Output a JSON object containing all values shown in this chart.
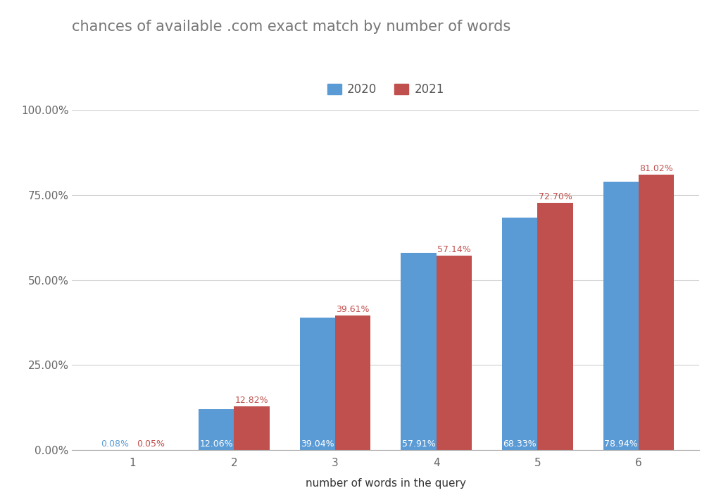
{
  "title": "chances of available .com exact match by number of words",
  "xlabel": "number of words in the query",
  "ylabel": "",
  "categories": [
    1,
    2,
    3,
    4,
    5,
    6
  ],
  "values_2020": [
    0.0008,
    0.1206,
    0.3904,
    0.5791,
    0.6833,
    0.7894
  ],
  "values_2021": [
    0.0005,
    0.1282,
    0.3961,
    0.5714,
    0.727,
    0.8102
  ],
  "labels_2020": [
    "0.08%",
    "12.06%",
    "39.04%",
    "57.91%",
    "68.33%",
    "78.94%"
  ],
  "labels_2021": [
    "0.05%",
    "12.82%",
    "39.61%",
    "57.14%",
    "72.70%",
    "81.02%"
  ],
  "color_2020": "#5B9BD5",
  "color_2021": "#C0504D",
  "legend_labels": [
    "2020",
    "2021"
  ],
  "yticks": [
    0.0,
    0.25,
    0.5,
    0.75,
    1.0
  ],
  "ytick_labels": [
    "0.00%",
    "25.00%",
    "50.00%",
    "75.00%",
    "100.00%"
  ],
  "background_color": "#ffffff",
  "title_fontsize": 15,
  "axis_label_fontsize": 11,
  "tick_fontsize": 11,
  "bar_label_fontsize": 9,
  "legend_fontsize": 12,
  "bar_width": 0.35
}
